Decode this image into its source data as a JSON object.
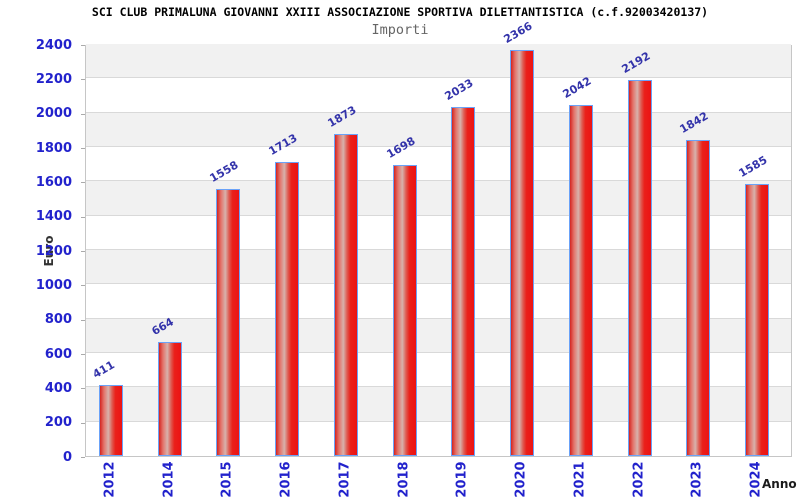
{
  "header": {
    "title": "SCI CLUB PRIMALUNA GIOVANNI XXIII ASSOCIAZIONE SPORTIVA DILETTANTISTICA (c.f.92003420137)",
    "subtitle": "Importi"
  },
  "chart_data": {
    "type": "bar",
    "title": "SCI CLUB PRIMALUNA GIOVANNI XXIII ASSOCIAZIONE SPORTIVA DILETTANTISTICA (c.f.92003420137)",
    "subtitle": "Importi",
    "categories": [
      "2012",
      "2014",
      "2015",
      "2016",
      "2017",
      "2018",
      "2019",
      "2020",
      "2021",
      "2022",
      "2023",
      "2024"
    ],
    "values": [
      411,
      664,
      1558,
      1713,
      1873,
      1698,
      2033,
      2366,
      2042,
      2192,
      1842,
      1585
    ],
    "xlabel": "Anno",
    "ylabel": "Euro",
    "ylim": [
      0,
      2400
    ],
    "ytick_step": 200,
    "yticks": [
      0,
      200,
      400,
      600,
      800,
      1000,
      1200,
      1400,
      1600,
      1800,
      2000,
      2200,
      2400
    ],
    "grid": "horizontal alternating bands",
    "legend": "none",
    "colors": {
      "bar_fill_main": "#ec1313",
      "bar_fill_highlight": "#d7b2ac",
      "bar_border": "#6aa2f8",
      "tick_label": "#2222cc",
      "value_label": "#3333aa",
      "band_gray": "#f1f1f1",
      "band_white": "#ffffff",
      "gridline": "#d9d9d9",
      "plot_border": "#c6c6c6",
      "title": "#000000",
      "subtitle": "#666666",
      "axis_title": "#333333",
      "background": "#ffffff"
    }
  }
}
